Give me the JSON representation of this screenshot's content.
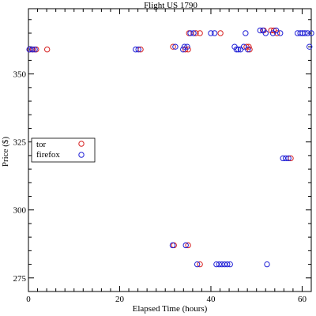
{
  "chart_data": {
    "type": "scatter",
    "title": "Flight US 1790",
    "xlabel": "Elapsed Time (hours)",
    "ylabel": "Price ($)",
    "xlim": [
      0,
      62
    ],
    "ylim": [
      270,
      374
    ],
    "x_ticks": [
      0,
      20,
      40,
      60
    ],
    "y_ticks": [
      275,
      300,
      325,
      350
    ],
    "grid": false,
    "legend_placement": "middle-left",
    "series": [
      {
        "name": "tor",
        "color": "#d62020",
        "marker": "open-circle",
        "points": [
          [
            0.3,
            359
          ],
          [
            1.0,
            359
          ],
          [
            1.7,
            359
          ],
          [
            4.1,
            359
          ],
          [
            24.6,
            359
          ],
          [
            31.7,
            360
          ],
          [
            34.4,
            359
          ],
          [
            35.0,
            359
          ],
          [
            35.2,
            365
          ],
          [
            36.7,
            365
          ],
          [
            37.6,
            365
          ],
          [
            42.1,
            365
          ],
          [
            47.8,
            360
          ],
          [
            48.3,
            360
          ],
          [
            48.5,
            359
          ],
          [
            51.6,
            366
          ],
          [
            53.2,
            366
          ],
          [
            53.8,
            366
          ],
          [
            54.5,
            365
          ],
          [
            57.5,
            319
          ],
          [
            31.9,
            287
          ],
          [
            35.0,
            287
          ],
          [
            37.6,
            280
          ]
        ]
      },
      {
        "name": "firefox",
        "color": "#2020d6",
        "marker": "open-circle",
        "points": [
          [
            0.2,
            359
          ],
          [
            0.8,
            359
          ],
          [
            1.4,
            359
          ],
          [
            23.5,
            359
          ],
          [
            24.1,
            359
          ],
          [
            32.2,
            360
          ],
          [
            33.9,
            359
          ],
          [
            34.2,
            360
          ],
          [
            34.8,
            360
          ],
          [
            35.5,
            365
          ],
          [
            36.2,
            365
          ],
          [
            40.0,
            365
          ],
          [
            40.8,
            365
          ],
          [
            45.2,
            360
          ],
          [
            45.6,
            359
          ],
          [
            46.0,
            359
          ],
          [
            46.5,
            359
          ],
          [
            47.2,
            360
          ],
          [
            47.6,
            365
          ],
          [
            48.1,
            359
          ],
          [
            50.8,
            366
          ],
          [
            51.4,
            366
          ],
          [
            52.0,
            365
          ],
          [
            53.6,
            365
          ],
          [
            54.3,
            366
          ],
          [
            55.2,
            365
          ],
          [
            55.8,
            319
          ],
          [
            56.4,
            319
          ],
          [
            57.0,
            319
          ],
          [
            59.0,
            365
          ],
          [
            59.6,
            365
          ],
          [
            60.1,
            365
          ],
          [
            60.6,
            365
          ],
          [
            61.2,
            365
          ],
          [
            61.6,
            360
          ],
          [
            62.0,
            365
          ],
          [
            31.6,
            287
          ],
          [
            34.5,
            287
          ],
          [
            37.0,
            280
          ],
          [
            41.2,
            280
          ],
          [
            41.8,
            280
          ],
          [
            42.4,
            280
          ],
          [
            43.0,
            280
          ],
          [
            43.6,
            280
          ],
          [
            44.2,
            280
          ],
          [
            52.3,
            280
          ]
        ]
      }
    ]
  }
}
